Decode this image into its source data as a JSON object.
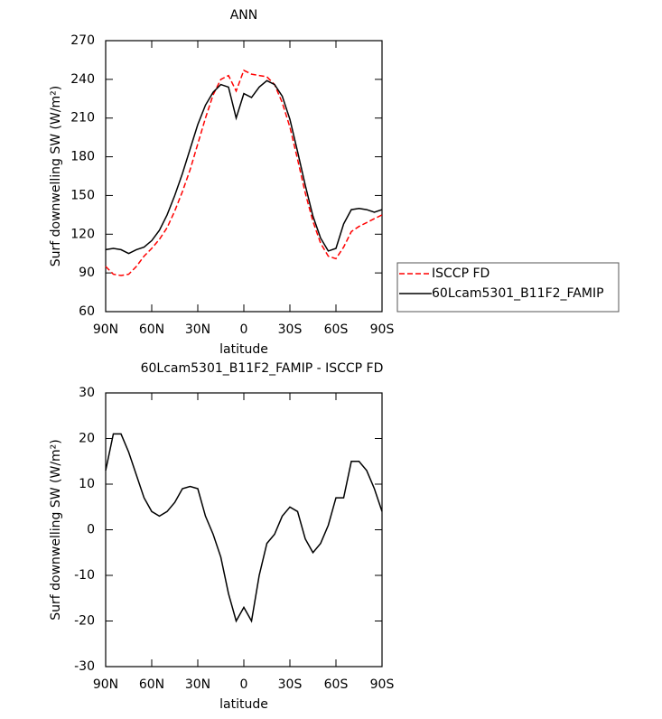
{
  "chart_data": [
    {
      "type": "line",
      "title": "ANN",
      "xlabel": "latitude",
      "ylabel": "Surf downwelling SW (W/m²)",
      "x": [
        90,
        85,
        80,
        75,
        70,
        65,
        60,
        55,
        50,
        45,
        40,
        35,
        30,
        25,
        20,
        15,
        10,
        5,
        0,
        -5,
        -10,
        -15,
        -20,
        -25,
        -30,
        -35,
        -40,
        -45,
        -50,
        -55,
        -60,
        -65,
        -70,
        -75,
        -80,
        -85,
        -90
      ],
      "series": [
        {
          "name": "ISCCP FD",
          "color": "#ff0000",
          "style": "dashed",
          "values": [
            95,
            89,
            88,
            89,
            95,
            103,
            109,
            116,
            125,
            138,
            153,
            170,
            190,
            210,
            228,
            240,
            243,
            231,
            247,
            244,
            243,
            242,
            236,
            222,
            203,
            178,
            152,
            130,
            113,
            103,
            101,
            110,
            122,
            126,
            129,
            132,
            135
          ]
        },
        {
          "name": "60Lcam5301_B11F2_FAMIP",
          "color": "#000000",
          "style": "solid",
          "values": [
            108,
            109,
            108,
            105,
            108,
            110,
            115,
            123,
            135,
            150,
            167,
            186,
            205,
            220,
            230,
            236,
            234,
            210,
            229,
            226,
            234,
            239,
            236,
            227,
            209,
            184,
            158,
            134,
            117,
            107,
            109,
            128,
            139,
            140,
            139,
            137,
            139
          ]
        }
      ],
      "xlim": [
        90,
        -90
      ],
      "xticks": [
        {
          "value": 90,
          "label": "90N"
        },
        {
          "value": 60,
          "label": "60N"
        },
        {
          "value": 30,
          "label": "30N"
        },
        0,
        {
          "value": -30,
          "label": "30S"
        },
        {
          "value": -60,
          "label": "60S"
        },
        {
          "value": -90,
          "label": "90S"
        }
      ],
      "ylim": [
        60,
        270
      ],
      "yticks": [
        60,
        90,
        120,
        150,
        180,
        210,
        240,
        270
      ],
      "legend": "right"
    },
    {
      "type": "line",
      "title": "60Lcam5301_B11F2_FAMIP - ISCCP FD",
      "xlabel": "latitude",
      "ylabel": "Surf downwelling SW (W/m²)",
      "x": [
        90,
        85,
        80,
        75,
        70,
        65,
        60,
        55,
        50,
        45,
        40,
        35,
        30,
        25,
        20,
        15,
        10,
        5,
        0,
        -5,
        -10,
        -15,
        -20,
        -25,
        -30,
        -35,
        -40,
        -45,
        -50,
        -55,
        -60,
        -65,
        -70,
        -75,
        -80,
        -85,
        -90
      ],
      "series": [
        {
          "color": "#000000",
          "style": "solid",
          "values": [
            13,
            21,
            21,
            17,
            12,
            7,
            4,
            3,
            4,
            6,
            9,
            9.5,
            9,
            3,
            -1,
            -6,
            -14,
            -20,
            -17,
            -20,
            -10,
            -3,
            -1,
            3,
            5,
            4,
            -2,
            -5,
            -3,
            1,
            7,
            7,
            15,
            15,
            13,
            9,
            4
          ]
        }
      ],
      "xlim": [
        90,
        -90
      ],
      "xticks": [
        {
          "value": 90,
          "label": "90N"
        },
        {
          "value": 60,
          "label": "60N"
        },
        {
          "value": 30,
          "label": "30N"
        },
        0,
        {
          "value": -30,
          "label": "30S"
        },
        {
          "value": -60,
          "label": "60S"
        },
        {
          "value": -90,
          "label": "90S"
        }
      ],
      "ylim": [
        -30,
        30
      ],
      "yticks": [
        -30,
        -20,
        -10,
        0,
        10,
        20,
        30
      ]
    }
  ]
}
